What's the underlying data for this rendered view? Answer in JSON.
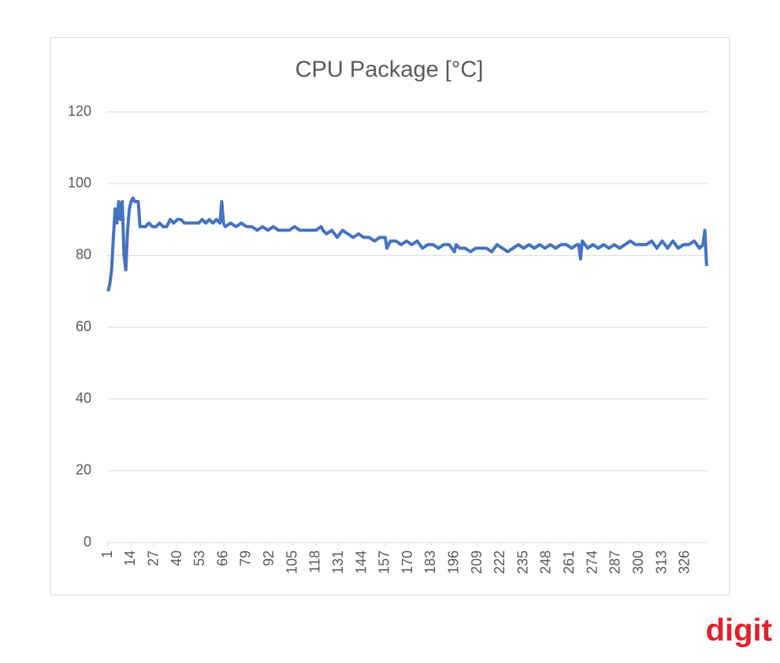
{
  "chart_data": {
    "type": "line",
    "title": "CPU Package [°C]",
    "x": [
      1,
      2,
      3,
      4,
      5,
      6,
      7,
      8,
      9,
      10,
      11,
      12,
      13,
      14,
      15,
      16,
      17,
      18,
      19,
      20,
      22,
      24,
      26,
      28,
      30,
      32,
      34,
      36,
      38,
      40,
      42,
      44,
      46,
      48,
      50,
      52,
      54,
      56,
      58,
      60,
      62,
      64,
      65,
      66,
      67,
      70,
      73,
      76,
      79,
      82,
      85,
      88,
      91,
      94,
      97,
      100,
      103,
      106,
      109,
      112,
      115,
      118,
      121,
      122,
      124,
      127,
      130,
      133,
      136,
      139,
      142,
      145,
      148,
      151,
      154,
      157,
      158,
      160,
      163,
      166,
      169,
      172,
      175,
      178,
      181,
      184,
      187,
      190,
      193,
      196,
      197,
      199,
      202,
      205,
      208,
      211,
      214,
      217,
      220,
      223,
      226,
      229,
      232,
      235,
      238,
      241,
      244,
      247,
      250,
      253,
      256,
      259,
      262,
      265,
      266,
      267,
      268,
      271,
      274,
      277,
      280,
      283,
      286,
      289,
      292,
      295,
      298,
      301,
      304,
      307,
      310,
      313,
      316,
      319,
      322,
      325,
      328,
      331,
      334,
      336,
      337,
      338
    ],
    "values": [
      70,
      72,
      76,
      85,
      93,
      89,
      95,
      90,
      95,
      80,
      76,
      87,
      93,
      95,
      96,
      95,
      95,
      95,
      88,
      88,
      88,
      89,
      88,
      88,
      89,
      88,
      88,
      90,
      89,
      90,
      90,
      89,
      89,
      89,
      89,
      89,
      90,
      89,
      90,
      89,
      90,
      89,
      95,
      89,
      88,
      89,
      88,
      89,
      88,
      88,
      87,
      88,
      87,
      88,
      87,
      87,
      87,
      88,
      87,
      87,
      87,
      87,
      88,
      87,
      86,
      87,
      85,
      87,
      86,
      85,
      86,
      85,
      85,
      84,
      85,
      85,
      82,
      84,
      84,
      83,
      84,
      83,
      84,
      82,
      83,
      83,
      82,
      83,
      83,
      81,
      83,
      82,
      82,
      81,
      82,
      82,
      82,
      81,
      83,
      82,
      81,
      82,
      83,
      82,
      83,
      82,
      83,
      82,
      83,
      82,
      83,
      83,
      82,
      83,
      83,
      79,
      84,
      82,
      83,
      82,
      83,
      82,
      83,
      82,
      83,
      84,
      83,
      83,
      83,
      84,
      82,
      84,
      82,
      84,
      82,
      83,
      83,
      84,
      82,
      83,
      87,
      77
    ],
    "color": "#4472c4",
    "xlim": [
      0.5,
      338.5
    ],
    "xticks": [
      1,
      14,
      27,
      40,
      53,
      66,
      79,
      92,
      105,
      118,
      131,
      144,
      157,
      170,
      183,
      196,
      209,
      222,
      235,
      248,
      261,
      274,
      287,
      300,
      313,
      326
    ],
    "ylim": [
      0,
      120
    ],
    "yticks": [
      0,
      20,
      40,
      60,
      80,
      100,
      120
    ],
    "grid": true
  },
  "watermark": "digit"
}
